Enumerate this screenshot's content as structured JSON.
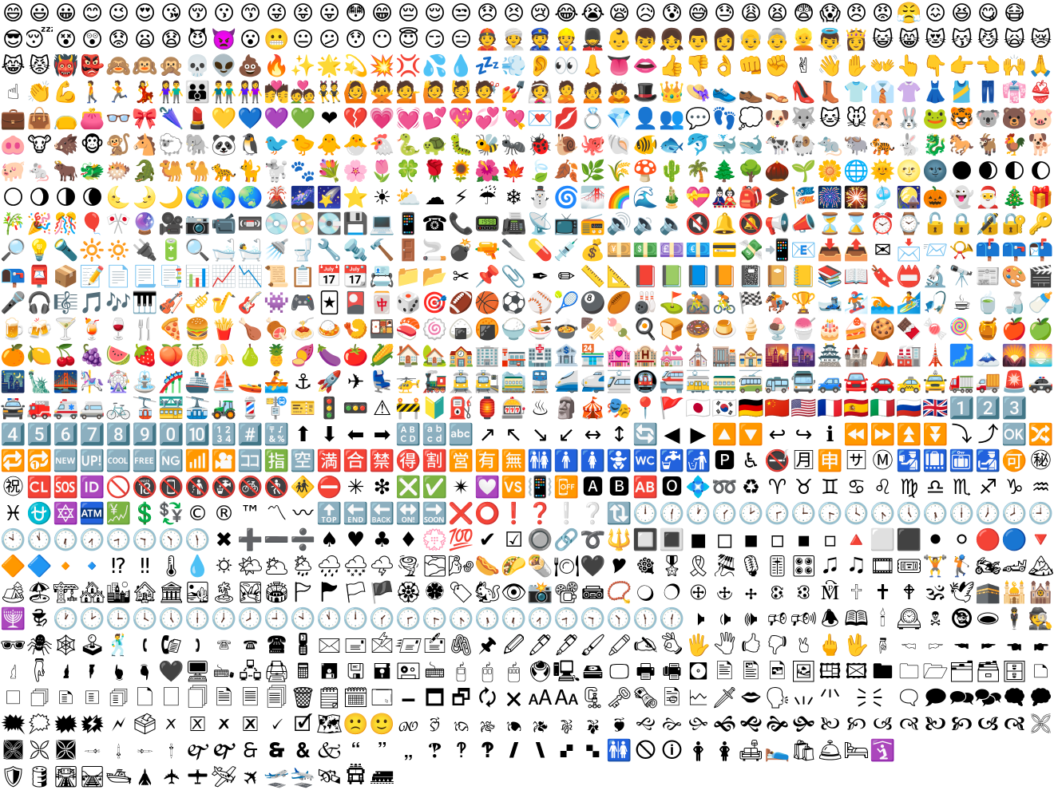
{
  "sheet": {
    "rows": [
      [
        "😄",
        "😃",
        "😀",
        "😊",
        "😉",
        "😍",
        "😘",
        "😚",
        "😗",
        "😙",
        "😜",
        "😝",
        "😛",
        "😳",
        "😁",
        "😔",
        "😌",
        "😒",
        "😞",
        "😣",
        "😢",
        "😂",
        "😭",
        "😪",
        "😥",
        "😰",
        "😅",
        "😓",
        "😩",
        "😫",
        "😨",
        "😱",
        "😠",
        "😡",
        "😤",
        "😖",
        "😆",
        "😋",
        "😷"
      ],
      [
        "😎",
        "😴",
        "😵",
        "😲",
        "😟",
        "😦",
        "😧",
        "😈",
        "👿",
        "😮",
        "😬",
        "😐",
        "😕",
        "😯",
        "😶",
        "😇",
        "😏",
        "😑",
        "👲",
        "👳",
        "👮",
        "👷",
        "💂",
        "👶",
        "👦",
        "👧",
        "👨",
        "👩",
        "👴",
        "👵",
        "👱",
        "👼",
        "👸",
        "😺",
        "😸",
        "😻",
        "😽",
        "😼",
        "🙀",
        "😿"
      ],
      [
        "😹",
        "😾",
        "👹",
        "👺",
        "🙈",
        "🙉",
        "🙊",
        "💀",
        "👽",
        "💩",
        "🔥",
        "✨",
        "🌟",
        "💫",
        "💥",
        "💢",
        "💦",
        "💧",
        "💤",
        "💨",
        "👂",
        "👀",
        "👃",
        "👅",
        "👄",
        "👍",
        "👎",
        "👌",
        "👊",
        "✊",
        "✌",
        "👋",
        "✋",
        "👐",
        "👆",
        "👇",
        "👉",
        "👈",
        "🙌",
        "🙏"
      ],
      [
        "☝",
        "👏",
        "💪",
        "🚶",
        "🏃",
        "💃",
        "👫",
        "👪",
        "👬",
        "👭",
        "💏",
        "💑",
        "👯",
        "🙆",
        "🙅",
        "💁",
        "🙋",
        "💆",
        "💇",
        "💅",
        "👰",
        "🙎",
        "🙍",
        "🙇",
        "🎩",
        "👑",
        "👒",
        "👟",
        "👞",
        "👡",
        "👠",
        "👢",
        "👕",
        "👔",
        "👚",
        "👗",
        "🎽",
        "👖",
        "👘",
        "👙"
      ],
      [
        "💼",
        "👜",
        "👝",
        "👛",
        "👓",
        "🎀",
        "🌂",
        "💄",
        "💛",
        "💙",
        "💜",
        "💚",
        "❤",
        "💔",
        "💗",
        "💓",
        "💕",
        "💖",
        "💞",
        "💘",
        "💌",
        "💋",
        "💍",
        "💎",
        "👤",
        "👥",
        "💬",
        "👣",
        "💭",
        "🐶",
        "🐺",
        "🐱",
        "🐭",
        "🐹",
        "🐰",
        "🐸",
        "🐯",
        "🐨",
        "🐻",
        "🐷"
      ],
      [
        "🐽",
        "🐮",
        "🐗",
        "🐵",
        "🐒",
        "🐴",
        "🐑",
        "🐘",
        "🐼",
        "🐧",
        "🐦",
        "🐤",
        "🐥",
        "🐣",
        "🐔",
        "🐍",
        "🐢",
        "🐛",
        "🐝",
        "🐜",
        "🐞",
        "🐌",
        "🐙",
        "🐚",
        "🐠",
        "🐟",
        "🐬",
        "🐳",
        "🐋",
        "🐄",
        "🐏",
        "🐀",
        "🐃",
        "🐅",
        "🐇",
        "🐉",
        "🐎",
        "🐐",
        "🐓",
        "🐕"
      ],
      [
        "🐖",
        "🐁",
        "🐂",
        "🐲",
        "🐡",
        "🐊",
        "🐫",
        "🐪",
        "🐆",
        "🐈",
        "🐩",
        "🐾",
        "💐",
        "🌸",
        "🌷",
        "🍀",
        "🌹",
        "🌻",
        "🌺",
        "🍁",
        "🍃",
        "🍂",
        "🌿",
        "🌾",
        "🍄",
        "🌵",
        "🌴",
        "🌲",
        "🌳",
        "🌰",
        "🌱",
        "🌼",
        "🌐",
        "🌞",
        "🌝",
        "🌚",
        "🌑",
        "🌒",
        "🌓",
        "🌔"
      ],
      [
        "🌕",
        "🌖",
        "🌗",
        "🌘",
        "🌜",
        "🌛",
        "🌙",
        "🌍",
        "🌎",
        "🌏",
        "🌋",
        "🌌",
        "🌠",
        "⭐",
        "☀",
        "⛅",
        "☁",
        "⚡",
        "☔",
        "❄",
        "⛄",
        "🌀",
        "🌁",
        "🌈",
        "🌊",
        "🎍",
        "💝",
        "🎎",
        "🎒",
        "🎓",
        "🎏",
        "🎆",
        "🎇",
        "🎐",
        "🎑",
        "🎃",
        "👻",
        "🎅",
        "🎄",
        "🎁"
      ],
      [
        "🎋",
        "🎉",
        "🎊",
        "🎈",
        "🎌",
        "🔮",
        "🎥",
        "📷",
        "📹",
        "📼",
        "💿",
        "📀",
        "💽",
        "💾",
        "💻",
        "📱",
        "☎",
        "📞",
        "📟",
        "📠",
        "📡",
        "📺",
        "📻",
        "🔊",
        "🔉",
        "🔈",
        "🔇",
        "🔔",
        "🔕",
        "📢",
        "📣",
        "⏳",
        "⌛",
        "⏰",
        "⌚",
        "🔓",
        "🔒",
        "🔏",
        "🔐",
        "🔑"
      ],
      [
        "🔎",
        "💡",
        "🔦",
        "🔆",
        "🔅",
        "🔌",
        "🔋",
        "🔍",
        "🛁",
        "🛀",
        "🚿",
        "🚽",
        "🔧",
        "🔩",
        "🔨",
        "🚪",
        "🚬",
        "💣",
        "🔫",
        "🔪",
        "💊",
        "💉",
        "💰",
        "💴",
        "💵",
        "💷",
        "💶",
        "💳",
        "💸",
        "📲",
        "📧",
        "📥",
        "📤",
        "✉",
        "📩",
        "📨",
        "📯",
        "📫",
        "📪",
        "📬"
      ],
      [
        "📭",
        "📮",
        "📦",
        "📝",
        "📄",
        "📃",
        "📑",
        "📊",
        "📈",
        "📉",
        "📜",
        "📋",
        "📅",
        "📆",
        "📇",
        "📁",
        "📂",
        "✂",
        "📌",
        "📎",
        "✒",
        "✏",
        "📏",
        "📐",
        "📕",
        "📗",
        "📘",
        "📙",
        "📓",
        "📔",
        "📒",
        "📚",
        "📖",
        "🔖",
        "📛",
        "🔬",
        "🔭",
        "📰",
        "🎨",
        "🎬"
      ],
      [
        "🎤",
        "🎧",
        "🎼",
        "🎵",
        "🎶",
        "🎹",
        "🎻",
        "🎺",
        "🎷",
        "🎸",
        "👾",
        "🎮",
        "🃏",
        "🎴",
        "🀄",
        "🎲",
        "🎯",
        "🏈",
        "🏀",
        "⚽",
        "⚾",
        "🎾",
        "🎱",
        "🏉",
        "🎳",
        "⛳",
        "🚵",
        "🚴",
        "🏁",
        "🏇",
        "🏆",
        "🎿",
        "🏂",
        "🏊",
        "🏄",
        "🎣",
        "☕",
        "🍵",
        "🍶",
        "🍼"
      ],
      [
        "🍺",
        "🍻",
        "🍸",
        "🍹",
        "🍷",
        "🍴",
        "🍕",
        "🍔",
        "🍟",
        "🍗",
        "🍖",
        "🍝",
        "🍛",
        "🍤",
        "🍱",
        "🍣",
        "🍥",
        "🍙",
        "🍘",
        "🍚",
        "🍜",
        "🍲",
        "🍢",
        "🍡",
        "🍳",
        "🍞",
        "🍩",
        "🍮",
        "🍦",
        "🍨",
        "🍧",
        "🎂",
        "🍰",
        "🍪",
        "🍫",
        "🍬",
        "🍭",
        "🍯",
        "🍎",
        "🍏"
      ],
      [
        "🍊",
        "🍋",
        "🍒",
        "🍇",
        "🍉",
        "🍓",
        "🍑",
        "🍈",
        "🍌",
        "🍐",
        "🍍",
        "🍠",
        "🍆",
        "🍅",
        "🌽",
        "🏠",
        "🏡",
        "🏫",
        "🏢",
        "🏣",
        "🏥",
        "🏦",
        "🏪",
        "🏩",
        "🏨",
        "💒",
        "⛪",
        "🏬",
        "🏤",
        "🌇",
        "🌆",
        "🏯",
        "🏰",
        "⛺",
        "🏭",
        "🗼",
        "🗾",
        "🗻",
        "🌄",
        "🌅"
      ],
      [
        "🌃",
        "🗽",
        "🌉",
        "🎠",
        "🎡",
        "⛲",
        "🎢",
        "🚢",
        "⛵",
        "🚤",
        "🚣",
        "⚓",
        "🚀",
        "✈",
        "💺",
        "🚁",
        "🚂",
        "🚊",
        "🚉",
        "🚞",
        "🚆",
        "🚄",
        "🚅",
        "🚈",
        "🚇",
        "🚝",
        "🚋",
        "🚃",
        "🚎",
        "🚌",
        "🚍",
        "🚙",
        "🚘",
        "🚗",
        "🚕",
        "🚖",
        "🚛",
        "🚚",
        "🚨",
        "🚓"
      ],
      [
        "🚔",
        "🚒",
        "🚑",
        "🚐",
        "🚲",
        "🚡",
        "🚟",
        "🚠",
        "🚜",
        "💈",
        "🚏",
        "🎫",
        "🚦",
        "🚥",
        "⚠",
        "🚧",
        "🔰",
        "⛽",
        "🏮",
        "🎰",
        "♨",
        "🗿",
        "🎪",
        "🎭",
        "📍",
        "🚩",
        "🇯🇵",
        "🇰🇷",
        "🇩🇪",
        "🇨🇳",
        "🇺🇸",
        "🇫🇷",
        "🇪🇸",
        "🇮🇹",
        "🇷🇺",
        "🇬🇧",
        "1️⃣",
        "2️⃣",
        "3️⃣"
      ],
      [
        "4️⃣",
        "5️⃣",
        "6️⃣",
        "7️⃣",
        "8️⃣",
        "9️⃣",
        "0️⃣",
        "🔟",
        "🔢",
        "#️⃣",
        "🔣",
        "⬆",
        "⬇",
        "⬅",
        "➡",
        "🔠",
        "🔡",
        "🔤",
        "↗",
        "↖",
        "↘",
        "↙",
        "↔",
        "↕",
        "🔄",
        "◀",
        "▶",
        "🔼",
        "🔽",
        "↩",
        "↪",
        "ℹ",
        "⏪",
        "⏩",
        "⏫",
        "⏬",
        "⤵",
        "⤴",
        "🆗",
        "🔀"
      ],
      [
        "🔁",
        "🔂",
        "🆕",
        "🆙",
        "🆒",
        "🆓",
        "🆖",
        "📶",
        "🎦",
        "🈁",
        "🈯",
        "🈳",
        "🈵",
        "🈴",
        "🈲",
        "🉐",
        "🈹",
        "🈺",
        "🈶",
        "🈚",
        "🚻",
        "🚹",
        "🚺",
        "🚼",
        "🚾",
        "🚰",
        "🚮",
        "🅿",
        "♿",
        "🚭",
        "🈷",
        "🈸",
        "🈂",
        "Ⓜ",
        "🛂",
        "🛄",
        "🛅",
        "🛃",
        "🉑",
        "㊙"
      ],
      [
        "㊗",
        "🆑",
        "🆘",
        "🆔",
        "🚫",
        "🔞",
        "📵",
        "🚯",
        "🚱",
        "🚳",
        "🚷",
        "🚸",
        "⛔",
        "✳",
        "❇",
        "❎",
        "✅",
        "✴",
        "💟",
        "🆚",
        "📳",
        "📴",
        "🅰",
        "🅱",
        "🆎",
        "🅾",
        "💠",
        "➿",
        "♻",
        "♈",
        "♉",
        "♊",
        "♋",
        "♌",
        "♍",
        "♎",
        "♏",
        "♐",
        "♑",
        "♒"
      ],
      [
        "♓",
        "⛎",
        "🔯",
        "🏧",
        "💹",
        "💲",
        "💱",
        "©",
        "®",
        "™",
        "〽",
        "〰",
        "🔝",
        "🔚",
        "🔙",
        "🔛",
        "🔜",
        "❌",
        "⭕",
        "❗",
        "❓",
        "❕",
        "❔",
        "🔃",
        "🕛",
        "🕧",
        "🕐",
        "🕜",
        "🕑",
        "🕝",
        "🕒",
        "🕞",
        "🕓",
        "🕟",
        "🕔",
        "🕠",
        "🕕",
        "🕖",
        "🕗",
        "🕘"
      ],
      [
        "🕙",
        "🕚",
        "🕡",
        "🕢",
        "🕣",
        "🕤",
        "🕥",
        "🕦",
        "✖",
        "➕",
        "➖",
        "➗",
        "♠",
        "♥",
        "♣",
        "♦",
        "💮",
        "💯",
        "✔",
        "☑",
        "🔘",
        "🔗",
        "➰",
        "🔱",
        "🔲",
        "🔳",
        "◼",
        "◻",
        "◾",
        "◽",
        "▪",
        "▫",
        "🔺",
        "⬜",
        "⬛",
        "⚫",
        "⚪",
        "🔴",
        "🔵",
        "🔻"
      ],
      [
        "🔶",
        "🔷",
        "🔸",
        "🔹",
        "⁉",
        "‼",
        "🌡",
        "💧",
        "🌣",
        "🌤",
        "🌥",
        "🌦",
        "🌧",
        "🌨",
        "🌩",
        "🌪",
        "🌫",
        "🌬",
        "🌭",
        "🌮",
        "🌯",
        "🍽",
        "🖤",
        "🎔",
        "🎕",
        "🎖",
        "🎗",
        "🎘",
        "🎙",
        "🎚",
        "🎛",
        "🎜",
        "🎝",
        "🎞",
        "🎟",
        "🏋",
        "🏌",
        "🏍",
        "🏎",
        "🏔"
      ],
      [
        "🏕",
        "🏖",
        "🏗",
        "🏘",
        "🏙",
        "🏚",
        "🏛",
        "🏜",
        "🏝",
        "🏞",
        "🏟",
        "🏱",
        "🏲",
        "🏳",
        "🏴",
        "🏵",
        "🏶",
        "🏷",
        "🐿",
        "👁",
        "📸",
        "📽",
        "📾",
        "📿",
        "🔾",
        "🔿",
        "🕀",
        "🕁",
        "🕂",
        "🕃",
        "🕄",
        "🕅",
        "🕆",
        "🕇",
        "🕈",
        "🕉",
        "🕊",
        "🕋",
        "🕌",
        "🕍"
      ],
      [
        "🕎",
        "🕏",
        "🕐",
        "🕑",
        "🕒",
        "🕓",
        "🕔",
        "🕕",
        "🕖",
        "🕗",
        "🕘",
        "🕙",
        "🕚",
        "🕛",
        "🕜",
        "🕝",
        "🕞",
        "🕟",
        "🕠",
        "🕡",
        "🕢",
        "🕣",
        "🕤",
        "🕥",
        "🕦",
        "🕧",
        "🕨",
        "🕩",
        "🕪",
        "🕫",
        "🕬",
        "🕭",
        "🕮",
        "🕯",
        "🕰",
        "🕱",
        "🕲",
        "🕳",
        "🕴",
        "🕵"
      ],
      [
        "🕶",
        "🕷",
        "🕸",
        "🕹",
        "🕺",
        "🕻",
        "🕼",
        "🕽",
        "🕾",
        "🕿",
        "🖀",
        "🖁",
        "🖂",
        "🖃",
        "🖄",
        "🖅",
        "🖆",
        "🖇",
        "🖈",
        "🖉",
        "🖊",
        "🖋",
        "🖌",
        "🖍",
        "🖎",
        "🖏",
        "🖐",
        "🖑",
        "🖒",
        "🖓",
        "🖔",
        "🖕",
        "🖖",
        "🖗",
        "🖘",
        "🖙",
        "🖚",
        "🖛",
        "🖜",
        "🖝"
      ],
      [
        "🖞",
        "🖟",
        "🖠",
        "🖡",
        "🖢",
        "🖣",
        "🖤",
        "🖥",
        "🖦",
        "🖧",
        "🖨",
        "🖩",
        "🖪",
        "🖫",
        "🖬",
        "🖭",
        "🖮",
        "🖯",
        "🖰",
        "🖱",
        "🖲",
        "🖳",
        "🖴",
        "🖵",
        "🖶",
        "🖷",
        "🖸",
        "🖹",
        "🖺",
        "🖻",
        "🖼",
        "🖽",
        "🖾",
        "🖿",
        "🗀",
        "🗁",
        "🗂",
        "🗃",
        "🗄",
        "🗅"
      ],
      [
        "🗆",
        "🗇",
        "🗈",
        "🗉",
        "🗊",
        "🗋",
        "🗌",
        "🗍",
        "🗎",
        "🗏",
        "🗐",
        "🗑",
        "🗒",
        "🗓",
        "🗔",
        "🗕",
        "🗖",
        "🗗",
        "🗘",
        "🗙",
        "🗚",
        "🗛",
        "🗜",
        "🗝",
        "🗞",
        "🗟",
        "🗠",
        "🗡",
        "🗢",
        "🗣",
        "🗤",
        "🗥",
        "🗦",
        "🗧",
        "🗨",
        "🗩",
        "🗪",
        "🗫",
        "🗬",
        "🗭"
      ],
      [
        "🗮",
        "🗯",
        "🗰",
        "🗱",
        "🗲",
        "🗳",
        "🗴",
        "🗵",
        "🗶",
        "🗷",
        "🗸",
        "🗹",
        "🗺",
        "🙁",
        "🙂",
        "🙐",
        "🙑",
        "🙒",
        "🙓",
        "🙔",
        "🙕",
        "🙖",
        "🙗",
        "🙘",
        "🙙",
        "🙚",
        "🙛",
        "🙜",
        "🙝",
        "🙞",
        "🙟",
        "🙠",
        "🙡",
        "🙢",
        "🙣",
        "🙤",
        "🙥",
        "🙦",
        "🙧",
        "🙨"
      ],
      [
        "🙩",
        "🙪",
        "🙫",
        "🙬",
        "🙭",
        "🙮",
        "🙯",
        "🙰",
        "🙱",
        "🙲",
        "🙳",
        "🙴",
        "🙵",
        "🙶",
        "🙷",
        "🙸",
        "🙹",
        "🙺",
        "🙻",
        "🙼",
        "🙽",
        "🙾",
        "🙿",
        "🚻",
        "🛇",
        "🛈",
        "🛉",
        "🛊",
        "🛋",
        "🛌",
        "🛍",
        "🛎",
        "🛏",
        "🛐"
      ],
      [
        "🛡",
        "🛢",
        "🛣",
        "🛤",
        "🛥",
        "🛦",
        "🛧",
        "🛨",
        "🛩",
        "🛪",
        "🛫",
        "🛬",
        "🛰",
        "🛱",
        "🛲"
      ]
    ]
  }
}
